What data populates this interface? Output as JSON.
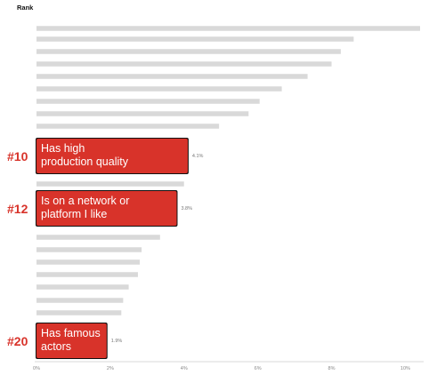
{
  "chart_data": {
    "type": "bar",
    "orientation": "horizontal",
    "heading": "Rank",
    "xlim": [
      0,
      10.4
    ],
    "x_ticks": [
      "0%",
      "2%",
      "4%",
      "6%",
      "8%",
      "10%"
    ],
    "bars": [
      {
        "value": 10.4
      },
      {
        "value": 8.6
      },
      {
        "value": 8.25
      },
      {
        "value": 8.0
      },
      {
        "value": 7.35
      },
      {
        "value": 6.65
      },
      {
        "value": 6.05
      },
      {
        "value": 5.75
      },
      {
        "value": 4.95
      },
      {
        "value": 4.1,
        "rank": "#10",
        "label_lines": [
          "Has high",
          "production quality"
        ],
        "value_label": "4.1%"
      },
      {
        "value": 4.0
      },
      {
        "value": 3.8,
        "rank": "#12",
        "label_lines": [
          "Is on a network or",
          "platform I like"
        ],
        "value_label": "3.8%"
      },
      {
        "value": 3.35
      },
      {
        "value": 2.85
      },
      {
        "value": 2.8
      },
      {
        "value": 2.75
      },
      {
        "value": 2.5
      },
      {
        "value": 2.35
      },
      {
        "value": 2.3
      },
      {
        "value": 1.9,
        "rank": "#20",
        "label_lines": [
          "Has famous",
          "actors"
        ],
        "value_label": "1.9%"
      }
    ],
    "colors": {
      "bar": "#d9d9d9",
      "highlight": "#d8332a",
      "highlight_text": "#ffffff",
      "rank_text": "#d8332a"
    }
  }
}
